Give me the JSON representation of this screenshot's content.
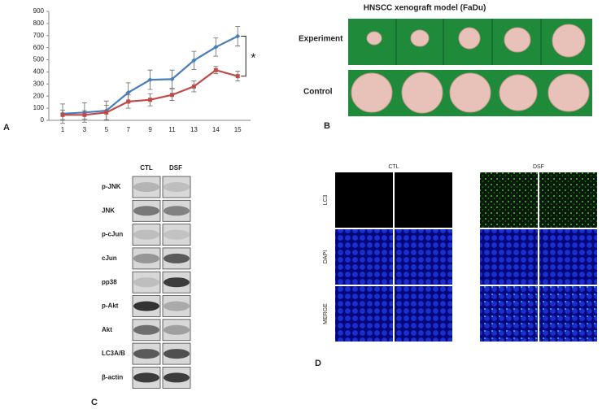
{
  "chart_data": {
    "type": "line",
    "categories": [
      "1",
      "3",
      "5",
      "7",
      "9",
      "11",
      "13",
      "14",
      "15"
    ],
    "series": [
      {
        "color": "#4a7ebb",
        "values": [
          55,
          65,
          80,
          230,
          335,
          340,
          495,
          605,
          695
        ],
        "errors": [
          80,
          80,
          80,
          80,
          80,
          75,
          75,
          75,
          80
        ]
      },
      {
        "color": "#be4b48",
        "values": [
          45,
          45,
          65,
          155,
          170,
          210,
          280,
          415,
          365
        ],
        "errors": [
          40,
          35,
          60,
          55,
          50,
          45,
          45,
          30,
          40
        ]
      }
    ],
    "ylim": [
      0,
      900
    ],
    "yticks": [
      0,
      100,
      200,
      300,
      400,
      500,
      600,
      700,
      800,
      900
    ],
    "annotation": "*"
  },
  "panel_labels": [
    "A",
    "B",
    "C",
    "D"
  ],
  "xenograft": {
    "title": "HNSCC xenograft model (FaDu)",
    "rows": [
      "Experiment",
      "Control"
    ]
  },
  "western_blot": {
    "columns": [
      "CTL",
      "DSF"
    ],
    "rows": [
      "p-JNK",
      "JNK",
      "p-cJun",
      "cJun",
      "pp38",
      "p-Akt",
      "Akt",
      "LC3A/B",
      "β-actin"
    ]
  },
  "immunofluorescence": {
    "columns": [
      "CTL",
      "DSF"
    ],
    "rows": [
      "LC3",
      "DAPI",
      "MERGE"
    ]
  }
}
